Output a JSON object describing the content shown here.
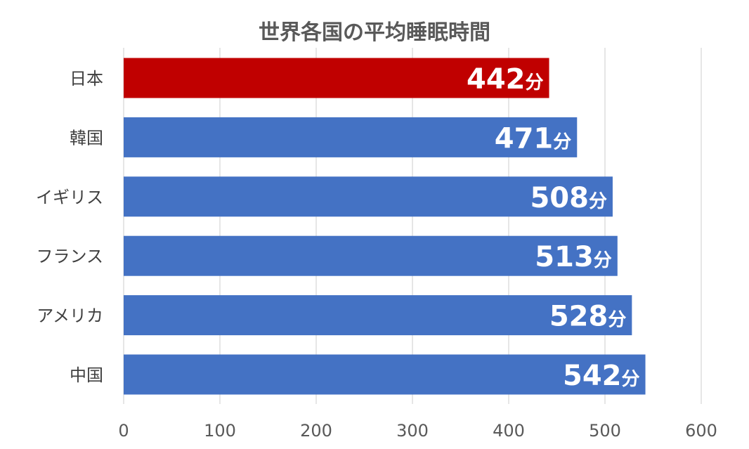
{
  "chart_data": {
    "type": "bar",
    "orientation": "horizontal",
    "title": "世界各国の平均睡眠時間",
    "categories": [
      "日本",
      "韓国",
      "イギリス",
      "フランス",
      "アメリカ",
      "中国"
    ],
    "values": [
      442,
      471,
      508,
      513,
      528,
      542
    ],
    "value_unit": "分",
    "xlim": [
      0,
      600
    ],
    "x_ticks": [
      0,
      100,
      200,
      300,
      400,
      500,
      600
    ],
    "grid": "vertical",
    "legend": "none",
    "colors": {
      "highlight": "#C00000",
      "default": "#4472C4",
      "grid": "#D9D9D9"
    },
    "highlight_index": 0
  }
}
